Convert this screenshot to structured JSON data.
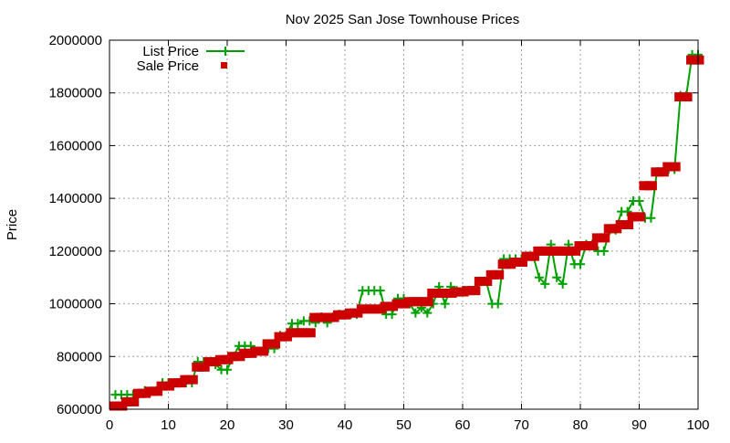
{
  "chart_data": {
    "type": "line",
    "title": "Nov 2025 San Jose Townhouse Prices",
    "xlabel": "",
    "ylabel": "Price",
    "xlim": [
      0,
      100
    ],
    "ylim": [
      600000,
      2000000
    ],
    "xticks": [
      "0",
      "10",
      "20",
      "30",
      "40",
      "50",
      "60",
      "70",
      "80",
      "90",
      "100"
    ],
    "yticks": [
      "600000",
      "800000",
      "1000000",
      "1200000",
      "1400000",
      "1600000",
      "1800000",
      "2000000"
    ],
    "grid": true,
    "legend_position": "top-left",
    "colors": {
      "list": "#00a000",
      "sale": "#cc0000"
    },
    "series": [
      {
        "name": "List Price",
        "style": "linespoints-plus",
        "x": [
          1,
          2,
          3,
          4,
          5,
          6,
          7,
          8,
          9,
          10,
          11,
          12,
          13,
          14,
          15,
          16,
          17,
          18,
          19,
          20,
          21,
          22,
          23,
          24,
          25,
          26,
          27,
          28,
          29,
          30,
          31,
          32,
          33,
          34,
          35,
          36,
          37,
          38,
          39,
          40,
          41,
          42,
          43,
          44,
          45,
          46,
          47,
          48,
          49,
          50,
          51,
          52,
          53,
          54,
          55,
          56,
          57,
          58,
          59,
          60,
          61,
          62,
          63,
          64,
          65,
          66,
          67,
          68,
          69,
          70,
          71,
          72,
          73,
          74,
          75,
          76,
          77,
          78,
          79,
          80,
          81,
          82,
          83,
          84,
          85,
          86,
          87,
          88,
          89,
          90,
          91,
          92,
          93,
          94,
          95,
          96,
          97,
          98,
          99,
          100
        ],
        "values": [
          655000,
          655000,
          655000,
          655000,
          660000,
          670000,
          668000,
          670000,
          700000,
          700000,
          700000,
          700000,
          700000,
          700000,
          780000,
          780000,
          780000,
          770000,
          750000,
          750000,
          800000,
          840000,
          840000,
          840000,
          820000,
          820000,
          830000,
          830000,
          880000,
          880000,
          925000,
          925000,
          935000,
          935000,
          928000,
          950000,
          928000,
          950000,
          960000,
          960000,
          960000,
          960000,
          1050000,
          1050000,
          1050000,
          1050000,
          960000,
          960000,
          1020000,
          1020000,
          1000000,
          965000,
          985000,
          965000,
          1000000,
          1065000,
          1000000,
          1065000,
          1050000,
          1050000,
          1050000,
          1050000,
          1085000,
          1085000,
          1000000,
          1000000,
          1170000,
          1170000,
          1170000,
          1170000,
          1180000,
          1180000,
          1100000,
          1075000,
          1225000,
          1100000,
          1075000,
          1225000,
          1150000,
          1150000,
          1225000,
          1225000,
          1200000,
          1200000,
          1280000,
          1280000,
          1350000,
          1350000,
          1390000,
          1390000,
          1325000,
          1325000,
          1500000,
          1500000,
          1510000,
          1510000,
          1790000,
          1790000,
          1945000,
          1945000
        ]
      },
      {
        "name": "Sale Price",
        "style": "boxes",
        "x": [
          1,
          2,
          3,
          4,
          5,
          6,
          7,
          8,
          9,
          10,
          11,
          12,
          13,
          14,
          15,
          16,
          17,
          18,
          19,
          20,
          21,
          22,
          23,
          24,
          25,
          26,
          27,
          28,
          29,
          30,
          31,
          32,
          33,
          34,
          35,
          36,
          37,
          38,
          39,
          40,
          41,
          42,
          43,
          44,
          45,
          46,
          47,
          48,
          49,
          50,
          51,
          52,
          53,
          54,
          55,
          56,
          57,
          58,
          59,
          60,
          61,
          62,
          63,
          64,
          65,
          66,
          67,
          68,
          69,
          70,
          71,
          72,
          73,
          74,
          75,
          76,
          77,
          78,
          79,
          80,
          81,
          82,
          83,
          84,
          85,
          86,
          87,
          88,
          89,
          90,
          91,
          92,
          93,
          94,
          95,
          96,
          97,
          98,
          99,
          100
        ],
        "values": [
          612000,
          612000,
          628000,
          628000,
          660000,
          660000,
          668000,
          668000,
          688000,
          688000,
          700000,
          700000,
          712000,
          712000,
          760000,
          760000,
          780000,
          780000,
          788000,
          788000,
          800000,
          800000,
          812000,
          812000,
          820000,
          820000,
          848000,
          848000,
          875000,
          875000,
          890000,
          890000,
          890000,
          890000,
          948000,
          948000,
          948000,
          948000,
          958000,
          958000,
          965000,
          965000,
          980000,
          980000,
          980000,
          980000,
          990000,
          990000,
          1000000,
          1000000,
          1008000,
          1008000,
          1008000,
          1008000,
          1040000,
          1040000,
          1040000,
          1040000,
          1045000,
          1045000,
          1050000,
          1050000,
          1085000,
          1085000,
          1110000,
          1110000,
          1150000,
          1150000,
          1158000,
          1158000,
          1180000,
          1180000,
          1200000,
          1200000,
          1200000,
          1200000,
          1200000,
          1200000,
          1200000,
          1220000,
          1220000,
          1220000,
          1250000,
          1250000,
          1285000,
          1285000,
          1300000,
          1300000,
          1330000,
          1330000,
          1448000,
          1448000,
          1500000,
          1500000,
          1520000,
          1520000,
          1785000,
          1785000,
          1925000,
          1925000
        ]
      }
    ]
  }
}
